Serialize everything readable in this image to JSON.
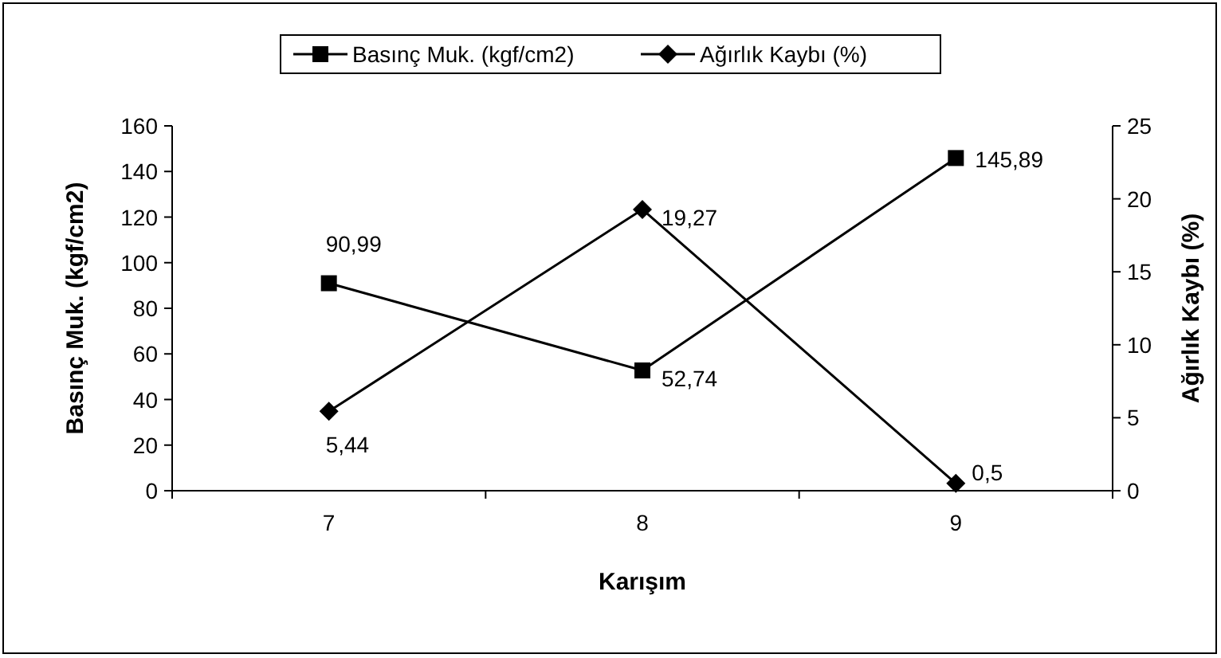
{
  "chart_data": {
    "type": "line",
    "xlabel": "Karışım",
    "ylabel": "Basınç Muk. (kgf/cm2)",
    "y2label": "Ağırlık Kaybı (%)",
    "categories": [
      "7",
      "8",
      "9"
    ],
    "series": [
      {
        "name": "Basınç Muk. (kgf/cm2)",
        "color": "#000000",
        "values": [
          90.99,
          52.74,
          145.89
        ],
        "value_labels": [
          "90,99",
          "52,74",
          "145,89"
        ],
        "marker": "square"
      },
      {
        "name": "Ağırlık Kaybı (%)",
        "color": "#000000",
        "values": [
          5.44,
          19.27,
          0.5
        ],
        "value_labels": [
          "5,44",
          "19,27",
          "0,5"
        ],
        "marker": "diamond",
        "axis": "y2"
      }
    ],
    "ylim": [
      0,
      160
    ],
    "yticks": [
      0,
      20,
      40,
      60,
      80,
      100,
      120,
      140,
      160
    ],
    "y2lim": [
      0,
      25
    ],
    "y2ticks": [
      0,
      5,
      10,
      15,
      20,
      25
    ],
    "legend": "top",
    "grid": false,
    "line_style": "solid"
  }
}
